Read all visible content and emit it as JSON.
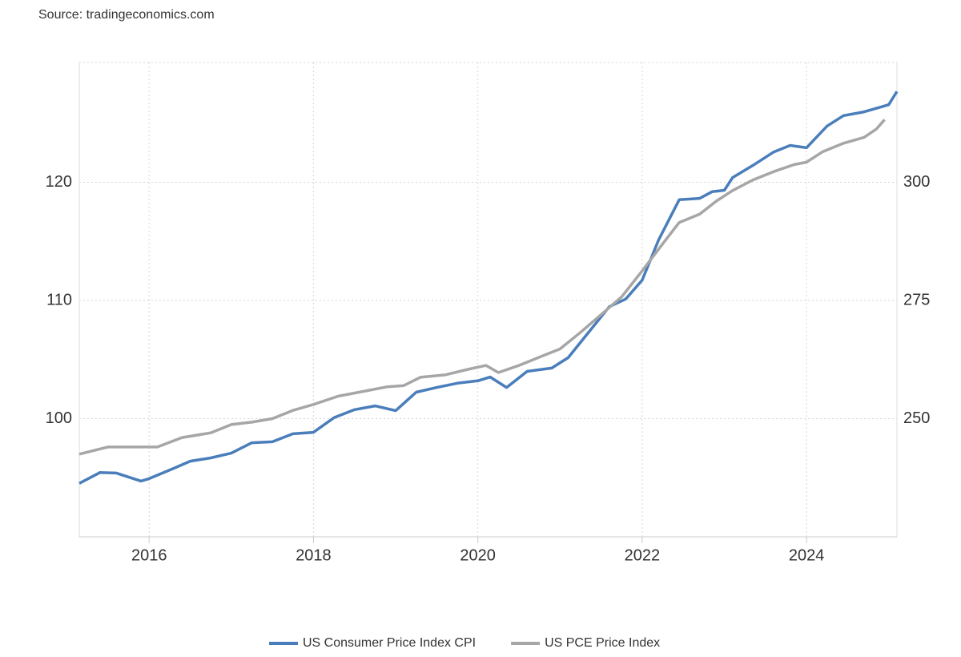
{
  "chart_data": {
    "type": "line",
    "source": "Source: tradingeconomics.com",
    "xlim": [
      2015.15,
      2025.1
    ],
    "xticks": [
      2016,
      2018,
      2020,
      2022,
      2024
    ],
    "ylim": [
      90,
      130
    ],
    "yticks": [
      100,
      110,
      120
    ],
    "y2lim": [
      225,
      325
    ],
    "y2ticks": [
      250,
      275,
      300
    ],
    "grid": true,
    "legend": "bottom",
    "series": [
      {
        "name": "US Consumer Price Index CPI",
        "color": "#4a7ebb",
        "axis": "y2",
        "x": [
          2015.15,
          2015.4,
          2015.6,
          2015.9,
          2016.0,
          2016.3,
          2016.5,
          2016.75,
          2017.0,
          2017.25,
          2017.5,
          2017.75,
          2018.0,
          2018.25,
          2018.5,
          2018.75,
          2019.0,
          2019.25,
          2019.5,
          2019.75,
          2020.0,
          2020.15,
          2020.35,
          2020.6,
          2020.9,
          2021.1,
          2021.35,
          2021.6,
          2021.8,
          2022.0,
          2022.2,
          2022.45,
          2022.7,
          2022.85,
          2023.0,
          2023.1,
          2023.35,
          2023.6,
          2023.8,
          2024.0,
          2024.25,
          2024.45,
          2024.7,
          2024.9,
          2025.0,
          2025.1
        ],
        "values": [
          236.3,
          238.6,
          238.5,
          236.8,
          237.3,
          239.5,
          241.0,
          241.7,
          242.7,
          244.9,
          245.1,
          246.8,
          247.1,
          250.2,
          251.9,
          252.7,
          251.7,
          255.6,
          256.6,
          257.5,
          258.0,
          258.8,
          256.6,
          260.0,
          260.7,
          262.9,
          268.3,
          273.7,
          275.3,
          279.3,
          287.8,
          296.3,
          296.6,
          298.0,
          298.3,
          301.0,
          303.6,
          306.4,
          307.8,
          307.3,
          311.9,
          314.1,
          314.9,
          315.9,
          316.4,
          319.2
        ]
      },
      {
        "name": "US PCE Price Index",
        "color": "#a6a6a6",
        "axis": "y",
        "x": [
          2015.15,
          2015.5,
          2015.9,
          2016.1,
          2016.4,
          2016.75,
          2017.0,
          2017.25,
          2017.5,
          2017.75,
          2018.0,
          2018.3,
          2018.6,
          2018.9,
          2019.1,
          2019.3,
          2019.6,
          2019.9,
          2020.1,
          2020.25,
          2020.5,
          2020.75,
          2021.0,
          2021.25,
          2021.5,
          2021.75,
          2022.0,
          2022.25,
          2022.45,
          2022.7,
          2022.9,
          2023.1,
          2023.35,
          2023.6,
          2023.85,
          2024.0,
          2024.2,
          2024.45,
          2024.7,
          2024.85,
          2024.95
        ],
        "values": [
          97.0,
          97.6,
          97.6,
          97.6,
          98.4,
          98.8,
          99.5,
          99.7,
          100.0,
          100.7,
          101.2,
          101.9,
          102.3,
          102.7,
          102.8,
          103.5,
          103.7,
          104.2,
          104.5,
          103.9,
          104.5,
          105.2,
          105.9,
          107.3,
          108.8,
          110.3,
          112.5,
          114.8,
          116.6,
          117.3,
          118.4,
          119.3,
          120.2,
          120.9,
          121.5,
          121.7,
          122.6,
          123.3,
          123.8,
          124.5,
          125.3
        ]
      }
    ]
  }
}
